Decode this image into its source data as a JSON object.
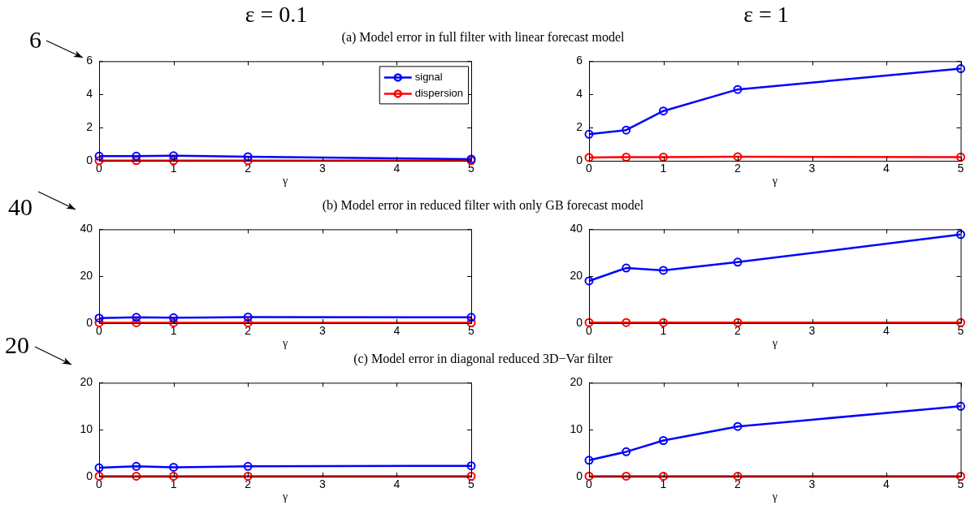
{
  "chart_data": [
    {
      "type": "line",
      "title": "(a) Model error in full filter with linear forecast model",
      "subtitle": "ε = 0.1",
      "annotations": [
        "6"
      ],
      "xlabel": "γ",
      "x": [
        0,
        0.5,
        1,
        2,
        5
      ],
      "xlim": [
        0,
        5
      ],
      "xticks": [
        0,
        1,
        2,
        3,
        4,
        5
      ],
      "ylim": [
        0,
        6
      ],
      "yticks": [
        0,
        2,
        4,
        6
      ],
      "grid": false,
      "legend": "top right",
      "marker": "circle",
      "line_style": "solid",
      "series": [
        {
          "name": "signal",
          "color": "#0000ff",
          "values": [
            0.28,
            0.28,
            0.3,
            0.25,
            0.1
          ]
        },
        {
          "name": "dispersion",
          "color": "#ff0000",
          "values": [
            0.01,
            0.01,
            0.01,
            0.01,
            0.01
          ]
        }
      ]
    },
    {
      "type": "line",
      "subtitle": "ε = 1",
      "xlabel": "γ",
      "x": [
        0,
        0.5,
        1,
        2,
        5
      ],
      "xlim": [
        0,
        5
      ],
      "xticks": [
        0,
        1,
        2,
        3,
        4,
        5
      ],
      "ylim": [
        0,
        6
      ],
      "yticks": [
        0,
        2,
        4,
        6
      ],
      "grid": false,
      "legend": false,
      "marker": "circle",
      "line_style": "solid",
      "series": [
        {
          "color": "#0000ff",
          "values": [
            1.6,
            1.85,
            3.0,
            4.3,
            5.55
          ]
        },
        {
          "color": "#ff0000",
          "values": [
            0.2,
            0.22,
            0.22,
            0.25,
            0.22
          ]
        }
      ]
    },
    {
      "type": "line",
      "title": "(b) Model error in reduced filter with only GB forecast model",
      "annotations": [
        "40"
      ],
      "xlabel": "γ",
      "x": [
        0,
        0.5,
        1,
        2,
        5
      ],
      "xlim": [
        0,
        5
      ],
      "xticks": [
        0,
        1,
        2,
        3,
        4,
        5
      ],
      "ylim": [
        0,
        40
      ],
      "yticks": [
        0,
        20,
        40
      ],
      "grid": false,
      "legend": false,
      "marker": "circle",
      "line_style": "solid",
      "series": [
        {
          "color": "#0000ff",
          "values": [
            2.2,
            2.5,
            2.3,
            2.6,
            2.5
          ]
        },
        {
          "color": "#ff0000",
          "values": [
            0.2,
            0.2,
            0.2,
            0.2,
            0.2
          ]
        }
      ]
    },
    {
      "type": "line",
      "xlabel": "γ",
      "x": [
        0,
        0.5,
        1,
        2,
        5
      ],
      "xlim": [
        0,
        5
      ],
      "xticks": [
        0,
        1,
        2,
        3,
        4,
        5
      ],
      "ylim": [
        0,
        40
      ],
      "yticks": [
        0,
        20,
        40
      ],
      "grid": false,
      "legend": false,
      "marker": "circle",
      "line_style": "solid",
      "series": [
        {
          "color": "#0000ff",
          "values": [
            18,
            23.5,
            22.5,
            26,
            37.8
          ]
        },
        {
          "color": "#ff0000",
          "values": [
            0.3,
            0.3,
            0.3,
            0.3,
            0.3
          ]
        }
      ]
    },
    {
      "type": "line",
      "title": "(c) Model error in diagonal reduced 3D−Var filter",
      "annotations": [
        "20"
      ],
      "xlabel": "γ",
      "x": [
        0,
        0.5,
        1,
        2,
        5
      ],
      "xlim": [
        0,
        5
      ],
      "xticks": [
        0,
        1,
        2,
        3,
        4,
        5
      ],
      "ylim": [
        0,
        20
      ],
      "yticks": [
        0,
        10,
        20
      ],
      "grid": false,
      "legend": false,
      "marker": "circle",
      "line_style": "solid",
      "series": [
        {
          "color": "#0000ff",
          "values": [
            1.9,
            2.2,
            2.0,
            2.2,
            2.3
          ]
        },
        {
          "color": "#ff0000",
          "values": [
            0.1,
            0.1,
            0.1,
            0.1,
            0.1
          ]
        }
      ]
    },
    {
      "type": "line",
      "xlabel": "γ",
      "x": [
        0,
        0.5,
        1,
        2,
        5
      ],
      "xlim": [
        0,
        5
      ],
      "xticks": [
        0,
        1,
        2,
        3,
        4,
        5
      ],
      "ylim": [
        0,
        20
      ],
      "yticks": [
        0,
        10,
        20
      ],
      "grid": false,
      "legend": false,
      "marker": "circle",
      "line_style": "solid",
      "series": [
        {
          "color": "#0000ff",
          "values": [
            3.5,
            5.3,
            7.7,
            10.7,
            15
          ]
        },
        {
          "color": "#ff0000",
          "values": [
            0.1,
            0.1,
            0.1,
            0.1,
            0.1
          ]
        }
      ]
    }
  ]
}
